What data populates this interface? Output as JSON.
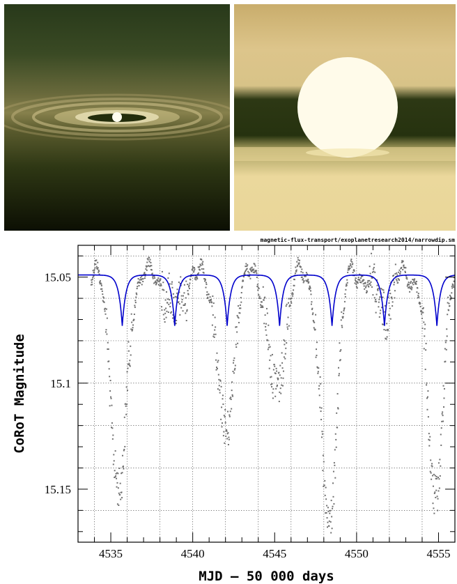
{
  "images": {
    "left": {
      "description_icon": "edge-on-disk-illustration"
    },
    "right": {
      "description_icon": "star-behind-dust-band-illustration"
    }
  },
  "chart_data": {
    "type": "scatter",
    "source_path": "magnetic-flux-transport/exoplanetresearch2014/narrowdip.sm",
    "xlabel": "MJD – 50 000 days",
    "ylabel": "CoRoT Magnitude",
    "xlim": [
      4533,
      4556
    ],
    "ylim": [
      15.175,
      15.035
    ],
    "y_inverted": true,
    "x_ticks": [
      4535,
      4540,
      4545,
      4550,
      4555
    ],
    "x_tick_labels": [
      "4535",
      "4540",
      "4545",
      "4550",
      "4555"
    ],
    "y_ticks": [
      15.05,
      15.1,
      15.15
    ],
    "y_tick_labels": [
      "15.05",
      "15.1",
      "15.15"
    ],
    "grid": true,
    "series": [
      {
        "kind": "observed",
        "color": "#707070"
      },
      {
        "kind": "model",
        "color": "#0000cc"
      }
    ],
    "observed_envelope": {
      "baseline": 15.049,
      "dips": [
        {
          "t": 4535.5,
          "min_mag": 15.153
        },
        {
          "t": 4538.9,
          "min_mag": 15.066
        },
        {
          "t": 4542.0,
          "min_mag": 15.126
        },
        {
          "t": 4545.1,
          "min_mag": 15.105
        },
        {
          "t": 4548.3,
          "min_mag": 15.17
        },
        {
          "t": 4551.6,
          "min_mag": 15.066
        },
        {
          "t": 4554.8,
          "min_mag": 15.153
        }
      ]
    },
    "model": {
      "baseline": 15.049,
      "depth_mag": 15.073,
      "dip_times": [
        4535.7,
        4538.9,
        4542.1,
        4545.3,
        4548.5,
        4551.7,
        4554.9
      ]
    }
  }
}
